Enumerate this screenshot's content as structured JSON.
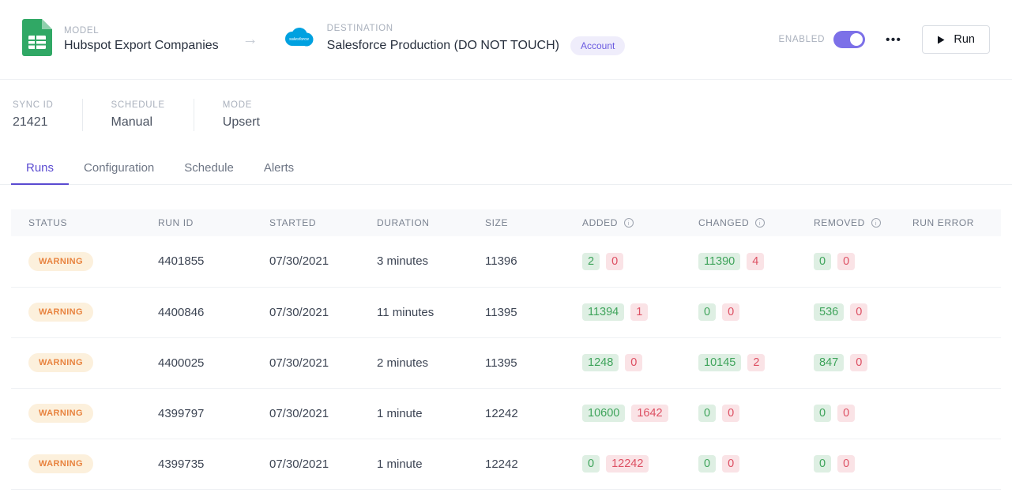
{
  "colors": {
    "accent_purple": "#5a4bd1",
    "toggle_purple": "#7c70e8",
    "warning_text": "#e8833f",
    "warning_bg": "#fcf0dc",
    "success_text": "#3fa45b",
    "success_bg": "#deefe3",
    "danger_text": "#dd5063",
    "danger_bg": "#fae3e6",
    "salesforce_blue": "#00a1e0",
    "sheets_green": "#30a865"
  },
  "header": {
    "model": {
      "label": "MODEL",
      "name": "Hubspot Export Companies"
    },
    "arrow": "→",
    "destination": {
      "label": "DESTINATION",
      "name": "Salesforce Production (DO NOT TOUCH)",
      "badge": "Account"
    },
    "enabled_label": "ENABLED",
    "overflow_menu": "•••",
    "run_button": "Run"
  },
  "meta": [
    {
      "label": "SYNC ID",
      "value": "21421"
    },
    {
      "label": "SCHEDULE",
      "value": "Manual"
    },
    {
      "label": "MODE",
      "value": "Upsert"
    }
  ],
  "tabs": [
    {
      "label": "Runs",
      "active": true
    },
    {
      "label": "Configuration",
      "active": false
    },
    {
      "label": "Schedule",
      "active": false
    },
    {
      "label": "Alerts",
      "active": false
    }
  ],
  "table": {
    "columns": [
      {
        "label": "STATUS",
        "info": false
      },
      {
        "label": "RUN ID",
        "info": false
      },
      {
        "label": "STARTED",
        "info": false
      },
      {
        "label": "DURATION",
        "info": false
      },
      {
        "label": "SIZE",
        "info": false
      },
      {
        "label": "ADDED",
        "info": true
      },
      {
        "label": "CHANGED",
        "info": true
      },
      {
        "label": "REMOVED",
        "info": true
      },
      {
        "label": "RUN ERROR",
        "info": false
      }
    ],
    "rows": [
      {
        "status": "WARNING",
        "run_id": "4401855",
        "started": "07/30/2021",
        "duration": "3 minutes",
        "size": "11396",
        "added": {
          "ok": "2",
          "fail": "0"
        },
        "changed": {
          "ok": "11390",
          "fail": "4"
        },
        "removed": {
          "ok": "0",
          "fail": "0"
        },
        "run_error": ""
      },
      {
        "status": "WARNING",
        "run_id": "4400846",
        "started": "07/30/2021",
        "duration": "11 minutes",
        "size": "11395",
        "added": {
          "ok": "11394",
          "fail": "1"
        },
        "changed": {
          "ok": "0",
          "fail": "0"
        },
        "removed": {
          "ok": "536",
          "fail": "0"
        },
        "run_error": ""
      },
      {
        "status": "WARNING",
        "run_id": "4400025",
        "started": "07/30/2021",
        "duration": "2 minutes",
        "size": "11395",
        "added": {
          "ok": "1248",
          "fail": "0"
        },
        "changed": {
          "ok": "10145",
          "fail": "2"
        },
        "removed": {
          "ok": "847",
          "fail": "0"
        },
        "run_error": ""
      },
      {
        "status": "WARNING",
        "run_id": "4399797",
        "started": "07/30/2021",
        "duration": "1 minute",
        "size": "12242",
        "added": {
          "ok": "10600",
          "fail": "1642"
        },
        "changed": {
          "ok": "0",
          "fail": "0"
        },
        "removed": {
          "ok": "0",
          "fail": "0"
        },
        "run_error": ""
      },
      {
        "status": "WARNING",
        "run_id": "4399735",
        "started": "07/30/2021",
        "duration": "1 minute",
        "size": "12242",
        "added": {
          "ok": "0",
          "fail": "12242"
        },
        "changed": {
          "ok": "0",
          "fail": "0"
        },
        "removed": {
          "ok": "0",
          "fail": "0"
        },
        "run_error": ""
      }
    ]
  }
}
